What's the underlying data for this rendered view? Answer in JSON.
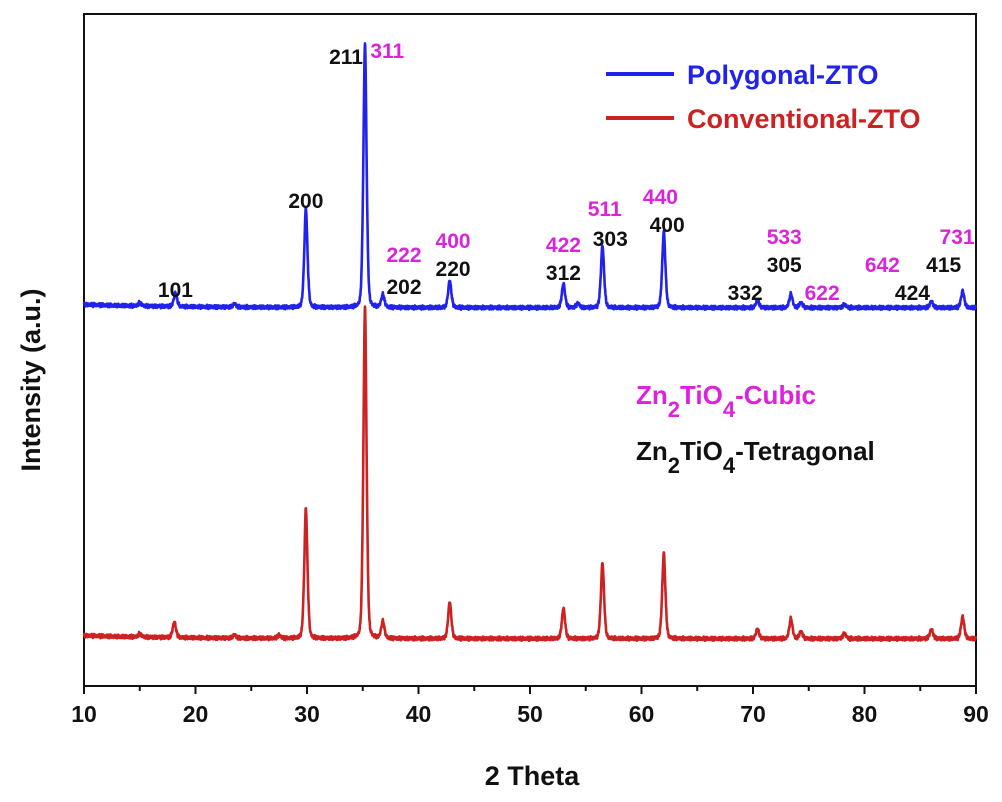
{
  "chart_data": {
    "type": "line",
    "xlabel": "2 Theta",
    "ylabel": "Intensity (a.u.)",
    "xlim": [
      10,
      90
    ],
    "xticks": [
      "10",
      "20",
      "30",
      "40",
      "50",
      "60",
      "70",
      "80",
      "90"
    ],
    "legend_position": "top-right",
    "series": [
      {
        "name": "Polygonal-ZTO",
        "color": "#2222ee",
        "baseline": 0.5,
        "peaks": [
          {
            "x": 15.0,
            "y": 0.3
          },
          {
            "x": 18.2,
            "y": 1.3
          },
          {
            "x": 23.5,
            "y": 0.3
          },
          {
            "x": 29.9,
            "y": 9.4
          },
          {
            "x": 35.2,
            "y": 25.0
          },
          {
            "x": 36.8,
            "y": 1.2
          },
          {
            "x": 42.8,
            "y": 2.6
          },
          {
            "x": 53.0,
            "y": 2.3
          },
          {
            "x": 54.3,
            "y": 0.4
          },
          {
            "x": 56.5,
            "y": 5.9
          },
          {
            "x": 62.0,
            "y": 7.2
          },
          {
            "x": 70.4,
            "y": 0.7
          },
          {
            "x": 73.4,
            "y": 1.3
          },
          {
            "x": 74.3,
            "y": 0.5
          },
          {
            "x": 78.2,
            "y": 0.3
          },
          {
            "x": 86.0,
            "y": 0.6
          },
          {
            "x": 88.8,
            "y": 1.6
          }
        ]
      },
      {
        "name": "Conventional-ZTO",
        "color": "#cc2222",
        "baseline": 0.5,
        "peaks": [
          {
            "x": 15.0,
            "y": 0.3
          },
          {
            "x": 18.1,
            "y": 1.5
          },
          {
            "x": 23.5,
            "y": 0.3
          },
          {
            "x": 27.5,
            "y": 0.3
          },
          {
            "x": 29.9,
            "y": 12.3
          },
          {
            "x": 35.2,
            "y": 31.4
          },
          {
            "x": 36.8,
            "y": 1.6
          },
          {
            "x": 42.8,
            "y": 3.5
          },
          {
            "x": 53.0,
            "y": 2.9
          },
          {
            "x": 56.5,
            "y": 7.2
          },
          {
            "x": 62.0,
            "y": 8.1
          },
          {
            "x": 70.4,
            "y": 0.9
          },
          {
            "x": 73.4,
            "y": 1.9
          },
          {
            "x": 74.3,
            "y": 0.7
          },
          {
            "x": 78.2,
            "y": 0.5
          },
          {
            "x": 86.0,
            "y": 0.9
          },
          {
            "x": 88.8,
            "y": 2.1
          }
        ]
      }
    ],
    "peak_labels": [
      {
        "text": "101",
        "x": 18.2,
        "level": 1,
        "phase": "tetragonal"
      },
      {
        "text": "200",
        "x": 29.9,
        "level": 1,
        "phase": "tetragonal"
      },
      {
        "text": "211",
        "x": 33.5,
        "level": 1,
        "phase": "tetragonal"
      },
      {
        "text": "311",
        "x": 37.2,
        "level": 2,
        "phase": "cubic"
      },
      {
        "text": "222",
        "x": 38.7,
        "level": 2,
        "phase": "cubic"
      },
      {
        "text": "202",
        "x": 38.7,
        "level": 1,
        "phase": "tetragonal"
      },
      {
        "text": "400",
        "x": 43.1,
        "level": 2,
        "phase": "cubic"
      },
      {
        "text": "220",
        "x": 43.1,
        "level": 1,
        "phase": "tetragonal"
      },
      {
        "text": "422",
        "x": 53.0,
        "level": 2,
        "phase": "cubic"
      },
      {
        "text": "312",
        "x": 53.0,
        "level": 1,
        "phase": "tetragonal"
      },
      {
        "text": "511",
        "x": 56.7,
        "level": 2,
        "phase": "cubic"
      },
      {
        "text": "303",
        "x": 57.2,
        "level": 1,
        "phase": "tetragonal"
      },
      {
        "text": "440",
        "x": 61.7,
        "level": 2,
        "phase": "cubic"
      },
      {
        "text": "400",
        "x": 62.3,
        "level": 1,
        "phase": "tetragonal"
      },
      {
        "text": "332",
        "x": 69.3,
        "level": 1,
        "phase": "tetragonal"
      },
      {
        "text": "533",
        "x": 72.8,
        "level": 2,
        "phase": "cubic"
      },
      {
        "text": "305",
        "x": 72.8,
        "level": 1,
        "phase": "tetragonal"
      },
      {
        "text": "622",
        "x": 76.2,
        "level": 1,
        "phase": "cubic"
      },
      {
        "text": "642",
        "x": 81.6,
        "level": 2,
        "phase": "cubic"
      },
      {
        "text": "424",
        "x": 84.3,
        "level": 1,
        "phase": "tetragonal"
      },
      {
        "text": "731",
        "x": 88.3,
        "level": 2,
        "phase": "cubic"
      },
      {
        "text": "415",
        "x": 87.1,
        "level": 1,
        "phase": "tetragonal"
      }
    ],
    "phase_legend": [
      {
        "phase": "cubic",
        "pre": "Zn",
        "sub1": "2",
        "mid": "TiO",
        "sub2": "4",
        "post": "-Cubic"
      },
      {
        "phase": "tetragonal",
        "pre": "Zn",
        "sub1": "2",
        "mid": "TiO",
        "sub2": "4",
        "post": "-Tetragonal"
      }
    ],
    "colors": {
      "cubic": "#dd22dd",
      "tetragonal": "#111111",
      "axis": "#111111"
    }
  }
}
